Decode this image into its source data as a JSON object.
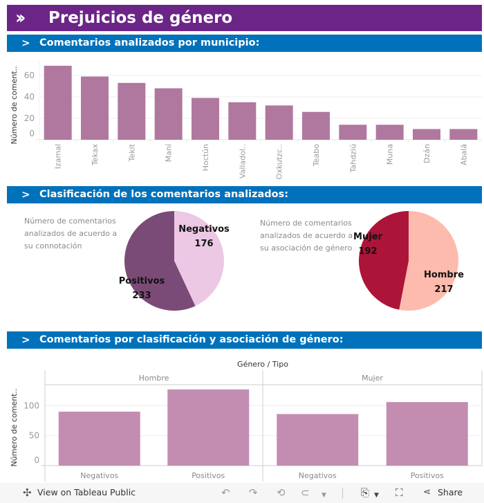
{
  "header": {
    "title": "Prejuicios de género",
    "icon": "double-chevron-right-icon"
  },
  "sections": [
    {
      "label": "Comentarios analizados por municipio:"
    },
    {
      "label": "Clasificación de los comentarios analizados:"
    },
    {
      "label": "Comentarios por clasificación y asociación de género:"
    }
  ],
  "descriptions": {
    "connotation": "Número de comentarios analizados de acuerdo a su connotación",
    "gender": "Número de comentarios analizados de acuerdo a su asociación de género"
  },
  "colors": {
    "title_bar": "#6b2586",
    "section_bar": "#0071bb",
    "bar_municipio": "#b0789f",
    "bar_clasif": "#c38db2",
    "pie_positivos": "#7b4b77",
    "pie_negativos": "#ecc8e4",
    "pie_mujer": "#ad1439",
    "pie_hombre": "#fdbbad"
  },
  "chart_data": [
    {
      "type": "bar",
      "title": "Comentarios analizados por municipio",
      "xlabel": "",
      "ylabel": "Número de coment..",
      "categories": [
        "Izamal",
        "Tekax",
        "Tekit",
        "Maní",
        "Hoctún",
        "Valladol..",
        "Oxkutzc..",
        "Teabo",
        "Tahdziú",
        "Muna",
        "Dzán",
        "Abalá"
      ],
      "values": [
        69,
        59,
        53,
        48,
        39,
        35,
        32,
        26,
        14,
        14,
        10,
        10
      ],
      "yticks": [
        0,
        20,
        40,
        60
      ],
      "ylim": [
        0,
        72
      ],
      "grid": true
    },
    {
      "type": "pie",
      "title": "Número de comentarios analizados de acuerdo a su connotación",
      "slices": [
        {
          "label": "Negativos",
          "value": 176
        },
        {
          "label": "Positivos",
          "value": 233
        }
      ]
    },
    {
      "type": "pie",
      "title": "Número de comentarios analizados de acuerdo a su asociación de género",
      "slices": [
        {
          "label": "Hombre",
          "value": 217
        },
        {
          "label": "Mujer",
          "value": 192
        }
      ]
    },
    {
      "type": "bar",
      "title": "Género / Tipo",
      "ylabel": "Número de coment..",
      "groups": [
        "Hombre",
        "Mujer"
      ],
      "categories": [
        "Negativos",
        "Positivos"
      ],
      "series": [
        {
          "name": "Hombre",
          "values": [
            90,
            127
          ]
        },
        {
          "name": "Mujer",
          "values": [
            86,
            106
          ]
        }
      ],
      "yticks": [
        0,
        50,
        100
      ],
      "ylim": [
        0,
        145
      ],
      "grid": true
    }
  ],
  "footer": {
    "view_label": "View on Tableau Public",
    "share_label": "Share"
  }
}
